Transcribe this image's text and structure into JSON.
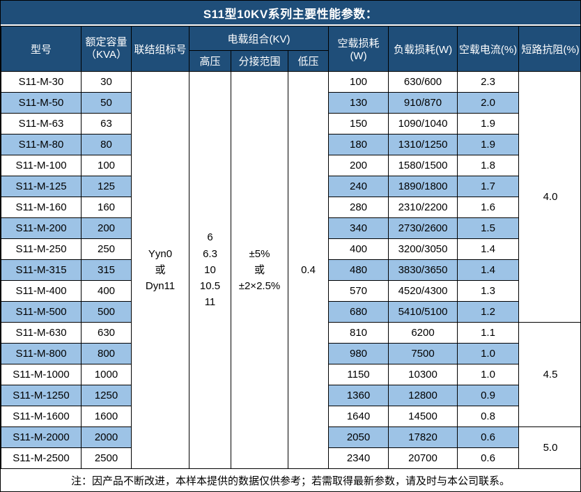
{
  "title": "S11型10KV系列主要性能参数：",
  "colors": {
    "header_bg": "#1F4E79",
    "stripe_bg": "#9DC3E6",
    "border": "#000000",
    "header_text": "#ffffff"
  },
  "header": {
    "model": "型号",
    "capacity_line1": "额定容量",
    "capacity_line2": "（KVA）",
    "connection": "联结组标号",
    "voltage_group": "电载组合(KV)",
    "hv": "高压",
    "tap": "分接范围",
    "lv": "低压",
    "no_load_loss": "空载损耗(W)",
    "load_loss": "负载损耗(W)",
    "no_load_current": "空载电流(%)",
    "impedance": "短路抗阻(%)"
  },
  "merged": {
    "connection": "Yyn0\n或\nDyn11",
    "hv": "6\n6.3\n10\n10.5\n11",
    "tap": "±5%\n或\n±2×2.5%",
    "lv": "0.4"
  },
  "impedance_groups": [
    {
      "value": "4.0",
      "span": 12
    },
    {
      "value": "4.5",
      "span": 5
    },
    {
      "value": "5.0",
      "span": 2
    }
  ],
  "rows": [
    {
      "model": "S11-M-30",
      "kva": "30",
      "no_load_loss": "100",
      "load_loss": "630/600",
      "no_load_current": "2.3"
    },
    {
      "model": "S11-M-50",
      "kva": "50",
      "no_load_loss": "130",
      "load_loss": "910/870",
      "no_load_current": "2.0"
    },
    {
      "model": "S11-M-63",
      "kva": "63",
      "no_load_loss": "150",
      "load_loss": "1090/1040",
      "no_load_current": "1.9"
    },
    {
      "model": "S11-M-80",
      "kva": "80",
      "no_load_loss": "180",
      "load_loss": "1310/1250",
      "no_load_current": "1.9"
    },
    {
      "model": "S11-M-100",
      "kva": "100",
      "no_load_loss": "200",
      "load_loss": "1580/1500",
      "no_load_current": "1.8"
    },
    {
      "model": "S11-M-125",
      "kva": "125",
      "no_load_loss": "240",
      "load_loss": "1890/1800",
      "no_load_current": "1.7"
    },
    {
      "model": "S11-M-160",
      "kva": "160",
      "no_load_loss": "280",
      "load_loss": "2310/2200",
      "no_load_current": "1.6"
    },
    {
      "model": "S11-M-200",
      "kva": "200",
      "no_load_loss": "340",
      "load_loss": "2730/2600",
      "no_load_current": "1.5"
    },
    {
      "model": "S11-M-250",
      "kva": "250",
      "no_load_loss": "400",
      "load_loss": "3200/3050",
      "no_load_current": "1.4"
    },
    {
      "model": "S11-M-315",
      "kva": "315",
      "no_load_loss": "480",
      "load_loss": "3830/3650",
      "no_load_current": "1.4"
    },
    {
      "model": "S11-M-400",
      "kva": "400",
      "no_load_loss": "570",
      "load_loss": "4520/4300",
      "no_load_current": "1.3"
    },
    {
      "model": "S11-M-500",
      "kva": "500",
      "no_load_loss": "680",
      "load_loss": "5410/5100",
      "no_load_current": "1.2"
    },
    {
      "model": "S11-M-630",
      "kva": "630",
      "no_load_loss": "810",
      "load_loss": "6200",
      "no_load_current": "1.1"
    },
    {
      "model": "S11-M-800",
      "kva": "800",
      "no_load_loss": "980",
      "load_loss": "7500",
      "no_load_current": "1.0"
    },
    {
      "model": "S11-M-1000",
      "kva": "1000",
      "no_load_loss": "1150",
      "load_loss": "10300",
      "no_load_current": "1.0"
    },
    {
      "model": "S11-M-1250",
      "kva": "1250",
      "no_load_loss": "1360",
      "load_loss": "12800",
      "no_load_current": "0.9"
    },
    {
      "model": "S11-M-1600",
      "kva": "1600",
      "no_load_loss": "1640",
      "load_loss": "14500",
      "no_load_current": "0.8"
    },
    {
      "model": "S11-M-2000",
      "kva": "2000",
      "no_load_loss": "2050",
      "load_loss": "17820",
      "no_load_current": "0.6"
    },
    {
      "model": "S11-M-2500",
      "kva": "2500",
      "no_load_loss": "2340",
      "load_loss": "20700",
      "no_load_current": "0.6"
    }
  ],
  "footer": "注：因产品不断改进，本样本提供的数据仅供参考；若需取得最新参数，请及时与本公司联系。"
}
